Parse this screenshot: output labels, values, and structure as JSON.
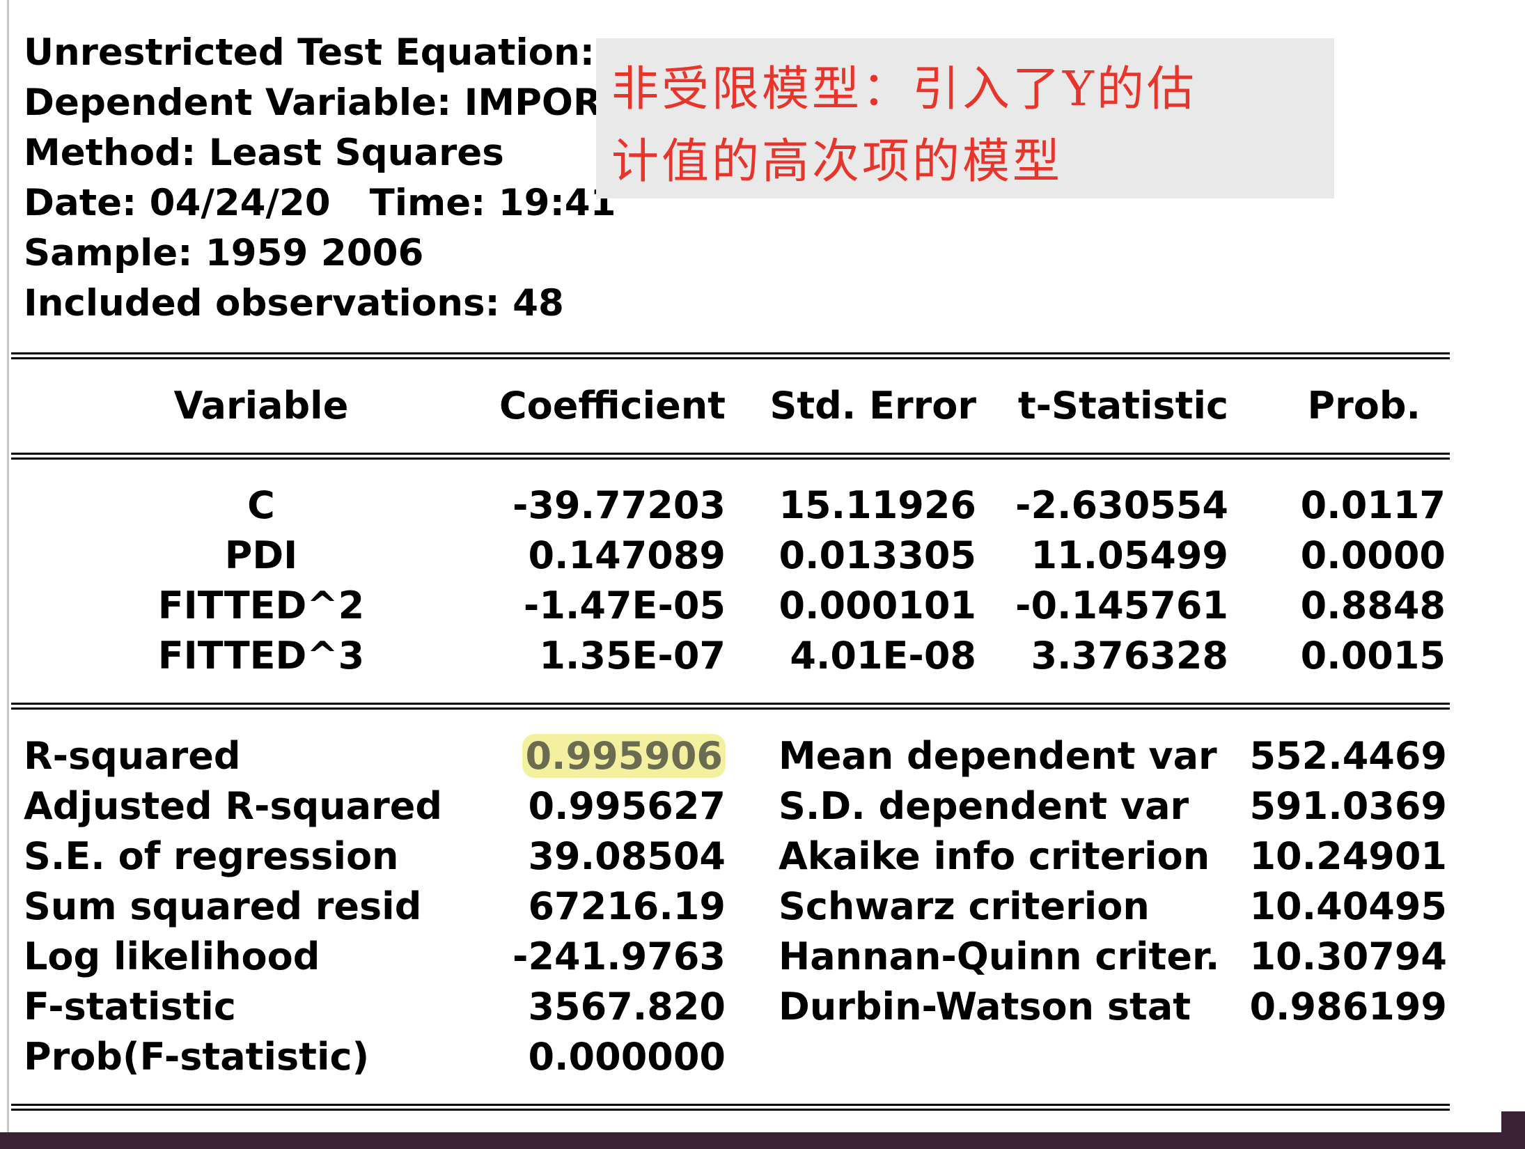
{
  "header": {
    "title": "Unrestricted Test Equation:",
    "dependent": "Dependent Variable: IMPORT",
    "method": "Method: Least Squares",
    "date": "Date: 04/24/20",
    "time": "Time: 19:41",
    "sample": "Sample: 1959 2006",
    "observations": "Included observations: 48"
  },
  "annotation": {
    "line1": "非受限模型：引入了Y的估",
    "line2": "计值的高次项的模型",
    "color": "#e8352b"
  },
  "table": {
    "headers": [
      "Variable",
      "Coefficient",
      "Std. Error",
      "t-Statistic",
      "Prob."
    ],
    "rows": [
      [
        "C",
        "-39.77203",
        "15.11926",
        "-2.630554",
        "0.0117"
      ],
      [
        "PDI",
        "0.147089",
        "0.013305",
        "11.05499",
        "0.0000"
      ],
      [
        "FITTED^2",
        "-1.47E-05",
        "0.000101",
        "-0.145761",
        "0.8848"
      ],
      [
        "FITTED^3",
        "1.35E-07",
        "4.01E-08",
        "3.376328",
        "0.0015"
      ]
    ]
  },
  "stats": {
    "left": [
      {
        "label": "R-squared",
        "value": "0.995906"
      },
      {
        "label": "Adjusted R-squared",
        "value": "0.995627"
      },
      {
        "label": "S.E. of regression",
        "value": "39.08504"
      },
      {
        "label": "Sum squared resid",
        "value": "67216.19"
      },
      {
        "label": "Log likelihood",
        "value": "-241.9763"
      },
      {
        "label": "F-statistic",
        "value": "3567.820"
      },
      {
        "label": "Prob(F-statistic)",
        "value": "0.000000"
      }
    ],
    "right": [
      {
        "label": "Mean dependent var",
        "value": "552.4469"
      },
      {
        "label": "S.D. dependent var",
        "value": "591.0369"
      },
      {
        "label": "Akaike info criterion",
        "value": "10.24901"
      },
      {
        "label": "Schwarz criterion",
        "value": "10.40495"
      },
      {
        "label": "Hannan-Quinn criter.",
        "value": "10.30794"
      },
      {
        "label": "Durbin-Watson stat",
        "value": "0.986199"
      }
    ],
    "highlight_color": "#f3f0a0"
  }
}
